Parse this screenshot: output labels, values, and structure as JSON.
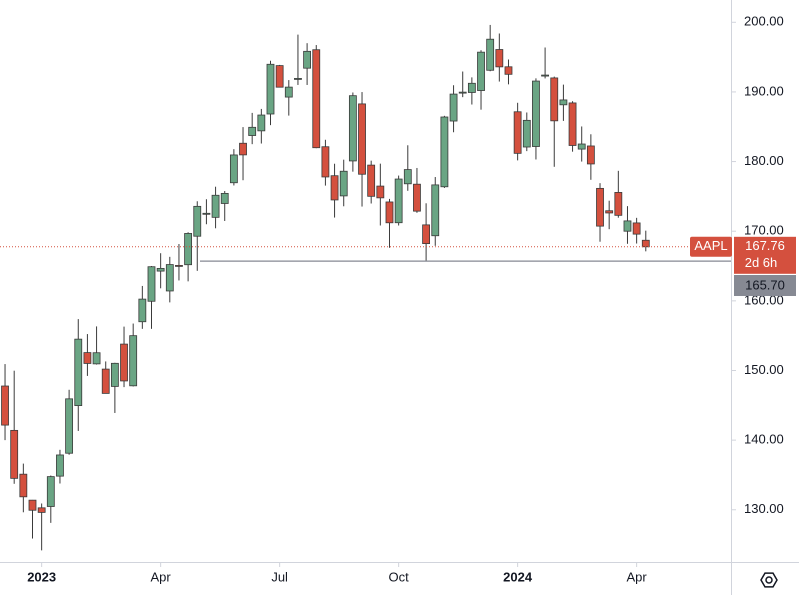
{
  "chart_data": {
    "type": "candlestick",
    "x": [
      0,
      1,
      2,
      3,
      4,
      5,
      6,
      7,
      8,
      9,
      10,
      11,
      12,
      13,
      14,
      15,
      16,
      17,
      18,
      19,
      20,
      21,
      22,
      23,
      24,
      25,
      26,
      27,
      28,
      29,
      30,
      31,
      32,
      33,
      34,
      35,
      36,
      37,
      38,
      39,
      40,
      41,
      42,
      43,
      44,
      45,
      46,
      47,
      48,
      49,
      50,
      51,
      52,
      53,
      54,
      55,
      56,
      57,
      58,
      59,
      60,
      61,
      62,
      63,
      64,
      65,
      66,
      67,
      68,
      69,
      70
    ],
    "xlim": [
      -0.55,
      79.2
    ],
    "xticks": [
      {
        "value": 4,
        "label": "2023"
      },
      {
        "value": 17,
        "label": "Apr"
      },
      {
        "value": 30,
        "label": "Jul"
      },
      {
        "value": 43,
        "label": "Oct"
      },
      {
        "value": 56,
        "label": "2024"
      },
      {
        "value": 69,
        "label": "Apr"
      }
    ],
    "ylim": [
      122.5,
      203.2
    ],
    "yticks": [
      {
        "value": 130,
        "label": "130.00"
      },
      {
        "value": 140,
        "label": "140.00"
      },
      {
        "value": 150,
        "label": "150.00"
      },
      {
        "value": 160,
        "label": "160.00"
      },
      {
        "value": 170,
        "label": "170.00"
      },
      {
        "value": 180,
        "label": "180.00"
      },
      {
        "value": 190,
        "label": "190.00"
      },
      {
        "value": 200,
        "label": "200.00"
      }
    ],
    "series": [
      {
        "name": "AAPL",
        "up_color": "#6aa584",
        "down_color": "#d4503e",
        "open": [
          147.77,
          141.4,
          135.11,
          131.38,
          130.28,
          130.47,
          134.83,
          138.12,
          144.96,
          152.57,
          150.95,
          150.2,
          147.71,
          153.79,
          147.8,
          157.0,
          159.94,
          164.27,
          161.42,
          165.09,
          165.19,
          169.28,
          172.48,
          171.99,
          173.98,
          176.96,
          182.63,
          183.74,
          184.41,
          186.83,
          193.78,
          189.26,
          191.9,
          193.41,
          196.06,
          182.13,
          177.97,
          175.07,
          180.09,
          188.28,
          179.49,
          176.48,
          174.2,
          171.22,
          176.81,
          176.75,
          170.91,
          169.35,
          176.38,
          185.82,
          189.89,
          189.92,
          190.2,
          193.11,
          196.09,
          193.61,
          187.15,
          182.09,
          182.16,
          192.3,
          192.01,
          188.15,
          188.42,
          181.79,
          182.24,
          176.15,
          172.94,
          175.57,
          170.0,
          171.19,
          168.7
        ],
        "high": [
          150.92,
          149.97,
          136.63,
          131.41,
          130.9,
          134.92,
          138.61,
          147.23,
          157.38,
          155.23,
          156.33,
          151.3,
          151.11,
          156.3,
          156.74,
          162.14,
          165.0,
          166.84,
          166.32,
          168.16,
          169.85,
          174.3,
          174.59,
          176.39,
          175.77,
          181.78,
          184.95,
          186.99,
          187.56,
          194.48,
          193.88,
          191.7,
          198.23,
          197.0,
          196.73,
          183.13,
          179.69,
          180.27,
          189.92,
          189.98,
          180.13,
          179.7,
          174.64,
          177.99,
          182.34,
          179.08,
          174.01,
          177.78,
          186.57,
          190.96,
          192.93,
          192.09,
          195.99,
          199.62,
          198.39,
          194.66,
          188.44,
          187.05,
          191.95,
          196.38,
          192.2,
          191.05,
          188.67,
          185.04,
          183.92,
          176.9,
          174.38,
          178.67,
          173.6,
          171.92,
          170.08
        ],
        "low": [
          140.0,
          133.73,
          129.64,
          125.87,
          124.17,
          128.12,
          133.77,
          137.9,
          141.32,
          149.22,
          150.85,
          146.71,
          143.9,
          147.61,
          147.7,
          155.98,
          155.98,
          161.8,
          159.78,
          162.93,
          162.8,
          164.31,
          171.0,
          170.42,
          171.47,
          176.57,
          177.32,
          182.5,
          182.59,
          185.23,
          190.68,
          186.6,
          191.0,
          191.0,
          181.92,
          176.55,
          171.96,
          173.58,
          178.55,
          173.54,
          173.98,
          170.82,
          167.62,
          170.82,
          175.8,
          172.64,
          165.67,
          167.9,
          176.21,
          184.21,
          189.25,
          188.19,
          187.45,
          192.97,
          191.49,
          191.09,
          180.17,
          181.5,
          180.3,
          191.94,
          179.25,
          185.84,
          181.42,
          180.0,
          177.38,
          168.49,
          170.29,
          171.94,
          168.19,
          168.23,
          167.11
        ],
        "close": [
          142.16,
          134.51,
          131.86,
          129.93,
          129.62,
          134.76,
          137.87,
          145.93,
          154.5,
          151.01,
          152.55,
          146.71,
          151.03,
          148.5,
          155.0,
          160.25,
          164.9,
          164.66,
          165.21,
          165.02,
          169.68,
          173.57,
          172.57,
          175.16,
          175.43,
          180.95,
          180.96,
          184.92,
          186.68,
          193.97,
          190.68,
          190.69,
          191.94,
          195.83,
          181.99,
          177.79,
          174.49,
          178.61,
          189.46,
          178.18,
          175.01,
          174.79,
          171.21,
          177.49,
          178.85,
          172.88,
          168.22,
          176.65,
          186.4,
          189.69,
          189.97,
          191.24,
          195.71,
          197.57,
          193.6,
          192.53,
          181.18,
          185.92,
          191.56,
          192.42,
          185.85,
          188.85,
          182.31,
          182.52,
          179.66,
          170.73,
          172.62,
          172.28,
          171.48,
          169.58,
          167.76
        ]
      }
    ],
    "price_line": {
      "value": 167.76,
      "label": "167.76",
      "countdown": "2d 6h",
      "color": "#d4503e"
    },
    "hline": {
      "value": 165.7,
      "label": "165.70",
      "color": "#868993"
    }
  }
}
